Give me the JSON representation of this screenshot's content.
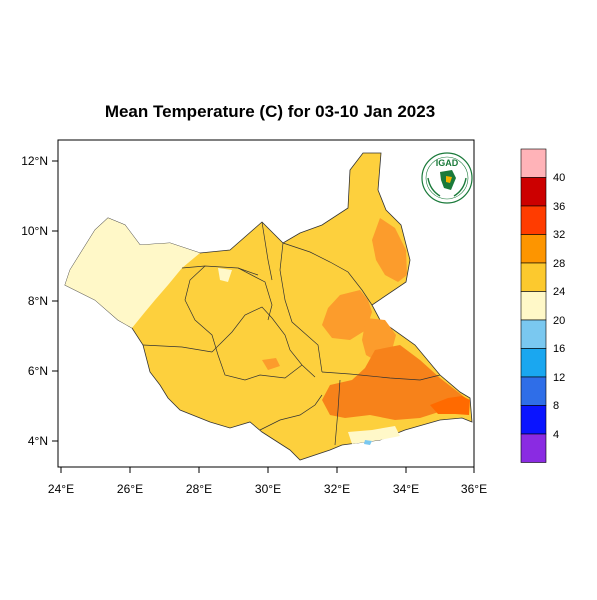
{
  "map": {
    "title": "Mean Temperature (C) for 03-10 Jan 2023",
    "x_ticks": [
      "24°E",
      "26°E",
      "28°E",
      "30°E",
      "32°E",
      "34°E",
      "36°E"
    ],
    "y_ticks": [
      "12°N",
      "10°N",
      "8°N",
      "6°N",
      "4°N"
    ],
    "logo_text": "IGAD"
  },
  "legend": {
    "labels": [
      "4",
      "8",
      "12",
      "16",
      "20",
      "24",
      "28",
      "32",
      "36",
      "40"
    ],
    "colors": [
      "#8a2be2",
      "#0a14ff",
      "#2f6ee8",
      "#1aa7f0",
      "#7ac8f0",
      "#fff8c8",
      "#fcc92e",
      "#fd9500",
      "#ff3c00",
      "#cc0000",
      "#ffb3b8"
    ]
  },
  "colors": {
    "base": "#fdd03d",
    "cool": "#fff8c8",
    "warm": "#fc9c2c",
    "warmer": "#f7821a",
    "hot": "#ff6a00",
    "border": "#333333",
    "logo_green": "#1a7a3a"
  }
}
